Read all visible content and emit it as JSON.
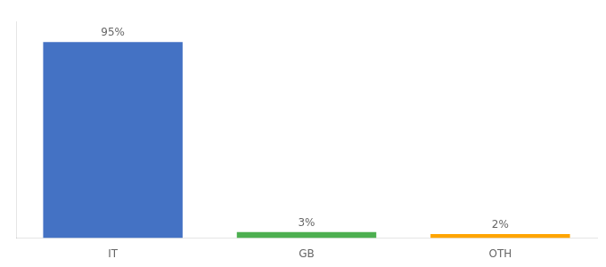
{
  "chart_data": {
    "type": "bar",
    "categories": [
      "IT",
      "GB",
      "OTH"
    ],
    "values": [
      95,
      3,
      2
    ],
    "value_labels": [
      "95%",
      "3%",
      "2%"
    ],
    "colors": [
      "#4472C4",
      "#4CAF50",
      "#FFA500"
    ],
    "ylim": [
      0,
      105
    ],
    "yticks": [],
    "grid": false,
    "tick_labels": "x",
    "data_labels": true
  }
}
